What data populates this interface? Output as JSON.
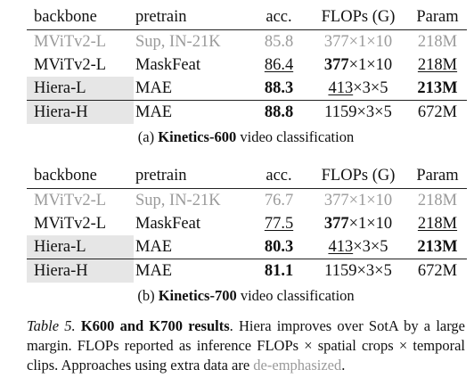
{
  "header": {
    "backbone": "backbone",
    "pretrain": "pretrain",
    "acc": "acc.",
    "flops": "FLOPs (G)",
    "param": "Param"
  },
  "tables": [
    {
      "rows": [
        {
          "backbone": "MViTv2-L",
          "pretrain": "Sup, IN-21K",
          "acc": "85.8",
          "flops_a": "377",
          "flops_b": "×1×10",
          "param": "218M"
        },
        {
          "backbone": "MViTv2-L",
          "pretrain": "MaskFeat",
          "acc": "86.4",
          "flops_a": "377",
          "flops_b": "×1×10",
          "param": "218M"
        },
        {
          "backbone": "Hiera-L",
          "pretrain": "MAE",
          "acc": "88.3",
          "flops_a": "413",
          "flops_b": "×3×5",
          "param": "213M"
        },
        {
          "backbone": "Hiera-H",
          "pretrain": "MAE",
          "acc": "88.8",
          "flops_a": "1159",
          "flops_b": "×3×5",
          "param": "672M"
        }
      ],
      "caption_prefix": "(a)",
      "caption_bold": "Kinetics-600",
      "caption_suffix": "video classification"
    },
    {
      "rows": [
        {
          "backbone": "MViTv2-L",
          "pretrain": "Sup, IN-21K",
          "acc": "76.7",
          "flops_a": "377",
          "flops_b": "×1×10",
          "param": "218M"
        },
        {
          "backbone": "MViTv2-L",
          "pretrain": "MaskFeat",
          "acc": "77.5",
          "flops_a": "377",
          "flops_b": "×1×10",
          "param": "218M"
        },
        {
          "backbone": "Hiera-L",
          "pretrain": "MAE",
          "acc": "80.3",
          "flops_a": "413",
          "flops_b": "×3×5",
          "param": "213M"
        },
        {
          "backbone": "Hiera-H",
          "pretrain": "MAE",
          "acc": "81.1",
          "flops_a": "1159",
          "flops_b": "×3×5",
          "param": "672M"
        }
      ],
      "caption_prefix": "(b)",
      "caption_bold": "Kinetics-700",
      "caption_suffix": "video classification"
    }
  ],
  "caption": {
    "label": "Table 5.",
    "bold": "K600 and K700 results",
    "text1": ". Hiera improves over SotA by a large margin. FLOPs reported as inference FLOPs × spatial crops × temporal clips. Approaches using extra data are ",
    "deemph": "de-emphasized",
    "text2": "."
  },
  "colors": {
    "deemphasized": "#9a9a9a",
    "shade": "#e6e6e6"
  }
}
